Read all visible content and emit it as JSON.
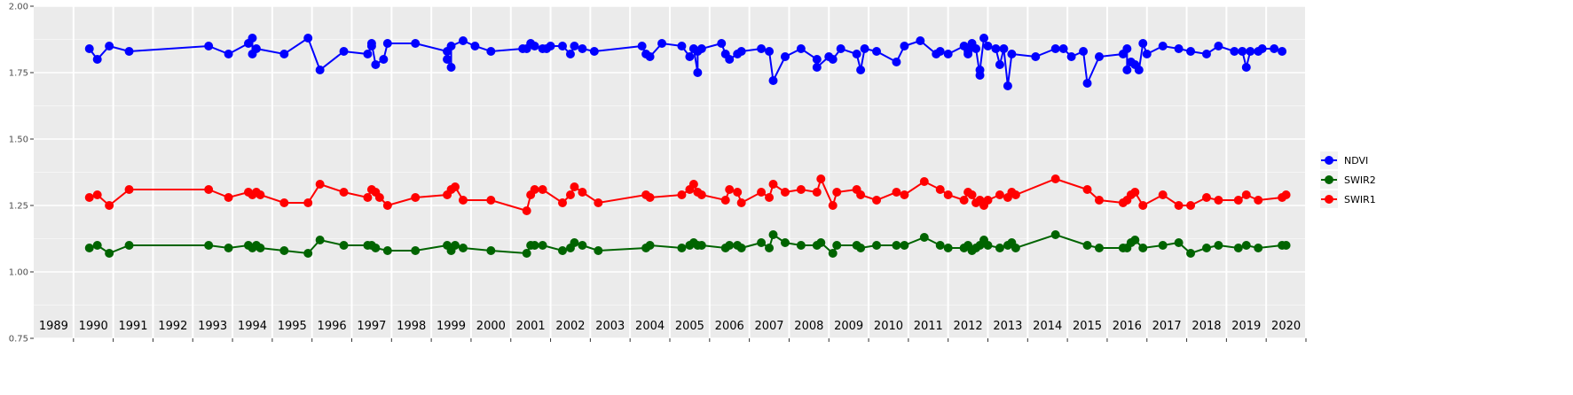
{
  "chart_data": {
    "type": "line",
    "title": "",
    "xlabel": "",
    "ylabel": "",
    "ylim": [
      0.75,
      2.0
    ],
    "xlim": [
      1988.5,
      2020.5
    ],
    "y_ticks": [
      "0.75",
      "1.00",
      "1.25",
      "1.50",
      "1.75",
      "2.00"
    ],
    "x_year_labels": [
      "1989",
      "1990",
      "1991",
      "1992",
      "1993",
      "1994",
      "1995",
      "1996",
      "1997",
      "1998",
      "1999",
      "2000",
      "2001",
      "2002",
      "2003",
      "2004",
      "2005",
      "2006",
      "2007",
      "2008",
      "2009",
      "2010",
      "2011",
      "2012",
      "2013",
      "2014",
      "2015",
      "2016",
      "2017",
      "2018",
      "2019",
      "2020"
    ],
    "grid": true,
    "legend": {
      "position": "right",
      "entries": [
        "NDVI",
        "SWIR2",
        "SWIR1"
      ]
    },
    "series": [
      {
        "name": "NDVI",
        "color": "#0000ff",
        "x": [
          1989.9,
          1990.1,
          1990.4,
          1990.9,
          1992.9,
          1993.4,
          1993.9,
          1994.0,
          1994.0,
          1994.1,
          1994.8,
          1995.4,
          1995.7,
          1996.3,
          1996.9,
          1997.0,
          1997.0,
          1997.1,
          1997.3,
          1997.4,
          1998.1,
          1998.9,
          1998.9,
          1999.0,
          1999.0,
          1999.3,
          1999.6,
          2000.0,
          2000.8,
          2000.9,
          2001.0,
          2001.1,
          2001.3,
          2001.4,
          2001.5,
          2001.8,
          2002.0,
          2002.1,
          2002.3,
          2002.6,
          2003.8,
          2003.9,
          2004.0,
          2004.3,
          2004.8,
          2005.0,
          2005.1,
          2005.2,
          2005.2,
          2005.3,
          2005.8,
          2005.9,
          2006.0,
          2006.2,
          2006.3,
          2006.8,
          2007.0,
          2007.1,
          2007.4,
          2007.8,
          2008.2,
          2008.2,
          2008.5,
          2008.6,
          2008.8,
          2009.2,
          2009.3,
          2009.4,
          2009.7,
          2010.2,
          2010.4,
          2010.8,
          2011.2,
          2011.3,
          2011.5,
          2011.9,
          2012.0,
          2012.0,
          2012.0,
          2012.1,
          2012.2,
          2012.3,
          2012.3,
          2012.4,
          2012.5,
          2012.7,
          2012.8,
          2012.9,
          2013.0,
          2013.1,
          2013.7,
          2014.2,
          2014.4,
          2014.6,
          2014.9,
          2015.0,
          2015.3,
          2015.9,
          2016.0,
          2016.0,
          2016.1,
          2016.2,
          2016.3,
          2016.4,
          2016.5,
          2016.9,
          2017.3,
          2017.6,
          2018.0,
          2018.3,
          2018.7,
          2018.9,
          2019.0,
          2019.1,
          2019.3,
          2019.4,
          2019.7,
          2019.9
        ],
        "y": [
          1.84,
          1.8,
          1.85,
          1.83,
          1.85,
          1.82,
          1.86,
          1.88,
          1.82,
          1.84,
          1.82,
          1.88,
          1.76,
          1.83,
          1.82,
          1.85,
          1.86,
          1.78,
          1.8,
          1.86,
          1.86,
          1.83,
          1.8,
          1.77,
          1.85,
          1.87,
          1.85,
          1.83,
          1.84,
          1.84,
          1.86,
          1.85,
          1.84,
          1.84,
          1.85,
          1.85,
          1.82,
          1.85,
          1.84,
          1.83,
          1.85,
          1.82,
          1.81,
          1.86,
          1.85,
          1.81,
          1.84,
          1.75,
          1.83,
          1.84,
          1.86,
          1.82,
          1.8,
          1.82,
          1.83,
          1.84,
          1.83,
          1.72,
          1.81,
          1.84,
          1.8,
          1.77,
          1.81,
          1.8,
          1.84,
          1.82,
          1.76,
          1.84,
          1.83,
          1.79,
          1.85,
          1.87,
          1.82,
          1.83,
          1.82,
          1.85,
          1.84,
          1.82,
          1.83,
          1.86,
          1.84,
          1.74,
          1.76,
          1.88,
          1.85,
          1.84,
          1.78,
          1.84,
          1.7,
          1.82,
          1.81,
          1.84,
          1.84,
          1.81,
          1.83,
          1.71,
          1.81,
          1.82,
          1.84,
          1.76,
          1.79,
          1.78,
          1.76,
          1.86,
          1.82,
          1.85,
          1.84,
          1.83,
          1.82,
          1.85,
          1.83,
          1.83,
          1.77,
          1.83,
          1.83,
          1.84,
          1.84,
          1.83
        ],
        "x_fix": true
      },
      {
        "name": "SWIR2",
        "color": "#006400",
        "x": [
          1989.9,
          1990.1,
          1990.4,
          1990.9,
          1992.9,
          1993.4,
          1993.9,
          1994.0,
          1994.1,
          1994.2,
          1994.8,
          1995.4,
          1995.7,
          1996.3,
          1996.9,
          1997.0,
          1997.1,
          1997.4,
          1998.1,
          1998.9,
          1999.0,
          1999.1,
          1999.3,
          2000.0,
          2000.9,
          2001.0,
          2001.1,
          2001.3,
          2001.8,
          2002.0,
          2002.1,
          2002.3,
          2002.7,
          2003.9,
          2004.0,
          2004.8,
          2005.0,
          2005.1,
          2005.2,
          2005.3,
          2005.9,
          2006.0,
          2006.2,
          2006.3,
          2006.8,
          2007.0,
          2007.1,
          2007.4,
          2007.8,
          2008.2,
          2008.3,
          2008.6,
          2008.7,
          2009.2,
          2009.3,
          2009.7,
          2010.2,
          2010.4,
          2010.9,
          2011.3,
          2011.5,
          2011.9,
          2012.0,
          2012.1,
          2012.2,
          2012.3,
          2012.4,
          2012.5,
          2012.8,
          2013.0,
          2013.1,
          2013.2,
          2014.2,
          2015.0,
          2015.3,
          2015.9,
          2016.0,
          2016.1,
          2016.2,
          2016.4,
          2016.9,
          2017.3,
          2017.6,
          2018.0,
          2018.3,
          2018.8,
          2019.0,
          2019.3,
          2019.9,
          2020.0
        ],
        "y": [
          1.09,
          1.1,
          1.07,
          1.1,
          1.1,
          1.09,
          1.1,
          1.09,
          1.1,
          1.09,
          1.08,
          1.07,
          1.12,
          1.1,
          1.1,
          1.1,
          1.09,
          1.08,
          1.08,
          1.1,
          1.08,
          1.1,
          1.09,
          1.08,
          1.07,
          1.1,
          1.1,
          1.1,
          1.08,
          1.09,
          1.11,
          1.1,
          1.08,
          1.09,
          1.1,
          1.09,
          1.1,
          1.11,
          1.1,
          1.1,
          1.09,
          1.1,
          1.1,
          1.09,
          1.11,
          1.09,
          1.14,
          1.11,
          1.1,
          1.1,
          1.11,
          1.07,
          1.1,
          1.1,
          1.09,
          1.1,
          1.1,
          1.1,
          1.13,
          1.1,
          1.09,
          1.09,
          1.1,
          1.08,
          1.09,
          1.1,
          1.12,
          1.1,
          1.09,
          1.1,
          1.11,
          1.09,
          1.14,
          1.1,
          1.09,
          1.09,
          1.09,
          1.11,
          1.12,
          1.09,
          1.1,
          1.11,
          1.07,
          1.09,
          1.1,
          1.09,
          1.1,
          1.09,
          1.1,
          1.1
        ]
      },
      {
        "name": "SWIR1",
        "color": "#ff0000",
        "x": [
          1989.9,
          1990.1,
          1990.4,
          1990.9,
          1992.9,
          1993.4,
          1993.9,
          1994.0,
          1994.1,
          1994.2,
          1994.8,
          1995.4,
          1995.7,
          1996.3,
          1996.9,
          1997.0,
          1997.1,
          1997.2,
          1997.4,
          1998.1,
          1998.9,
          1999.0,
          1999.1,
          1999.3,
          2000.0,
          2000.9,
          2001.0,
          2001.1,
          2001.3,
          2001.8,
          2002.0,
          2002.1,
          2002.3,
          2002.7,
          2003.9,
          2004.0,
          2004.8,
          2005.0,
          2005.1,
          2005.2,
          2005.3,
          2005.9,
          2006.0,
          2006.2,
          2006.3,
          2006.8,
          2007.0,
          2007.1,
          2007.4,
          2007.8,
          2008.2,
          2008.3,
          2008.6,
          2008.7,
          2009.2,
          2009.3,
          2009.7,
          2010.2,
          2010.4,
          2010.9,
          2011.3,
          2011.5,
          2011.9,
          2012.0,
          2012.1,
          2012.2,
          2012.3,
          2012.4,
          2012.5,
          2012.8,
          2013.0,
          2013.1,
          2013.2,
          2014.2,
          2015.0,
          2015.3,
          2015.9,
          2016.0,
          2016.1,
          2016.2,
          2016.4,
          2016.9,
          2017.3,
          2017.6,
          2018.0,
          2018.3,
          2018.8,
          2019.0,
          2019.3,
          2019.9,
          2020.0
        ],
        "y": [
          1.28,
          1.29,
          1.25,
          1.31,
          1.31,
          1.28,
          1.3,
          1.29,
          1.3,
          1.29,
          1.26,
          1.26,
          1.33,
          1.3,
          1.28,
          1.31,
          1.3,
          1.28,
          1.25,
          1.28,
          1.29,
          1.31,
          1.32,
          1.27,
          1.27,
          1.23,
          1.29,
          1.31,
          1.31,
          1.26,
          1.29,
          1.32,
          1.3,
          1.26,
          1.29,
          1.28,
          1.29,
          1.31,
          1.33,
          1.3,
          1.29,
          1.27,
          1.31,
          1.3,
          1.26,
          1.3,
          1.28,
          1.33,
          1.3,
          1.31,
          1.3,
          1.35,
          1.25,
          1.3,
          1.31,
          1.29,
          1.27,
          1.3,
          1.29,
          1.34,
          1.31,
          1.29,
          1.27,
          1.3,
          1.29,
          1.26,
          1.27,
          1.25,
          1.27,
          1.29,
          1.28,
          1.3,
          1.29,
          1.35,
          1.31,
          1.27,
          1.26,
          1.27,
          1.29,
          1.3,
          1.25,
          1.29,
          1.25,
          1.25,
          1.28,
          1.27,
          1.27,
          1.29,
          1.27,
          1.28,
          1.29
        ]
      }
    ]
  }
}
